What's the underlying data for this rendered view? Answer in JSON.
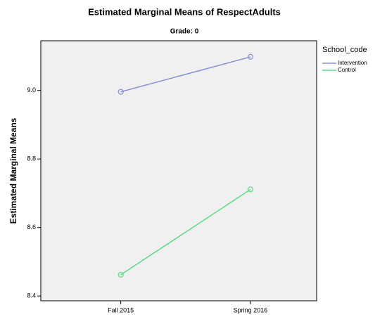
{
  "chart_data": {
    "type": "line",
    "title": "Estimated Marginal Means of RespectAdults",
    "subtitle": "Grade: 0",
    "ylabel": "Estimated Marginal Means",
    "legend_title": "School_code",
    "legend": "outside-right",
    "categories": [
      "Fall 2015",
      "Spring 2016"
    ],
    "series": [
      {
        "name": "Intervention",
        "color": "#8b8fd6",
        "values": [
          8.996,
          9.098
        ]
      },
      {
        "name": "Control",
        "color": "#5ed98a",
        "values": [
          8.462,
          8.711
        ]
      }
    ],
    "ylim": [
      8.386,
      9.145
    ],
    "yticks": [
      {
        "value": 9,
        "label": "9.0"
      },
      8.8,
      8.6,
      8.4
    ],
    "plot_background": "#f0f0f0"
  }
}
